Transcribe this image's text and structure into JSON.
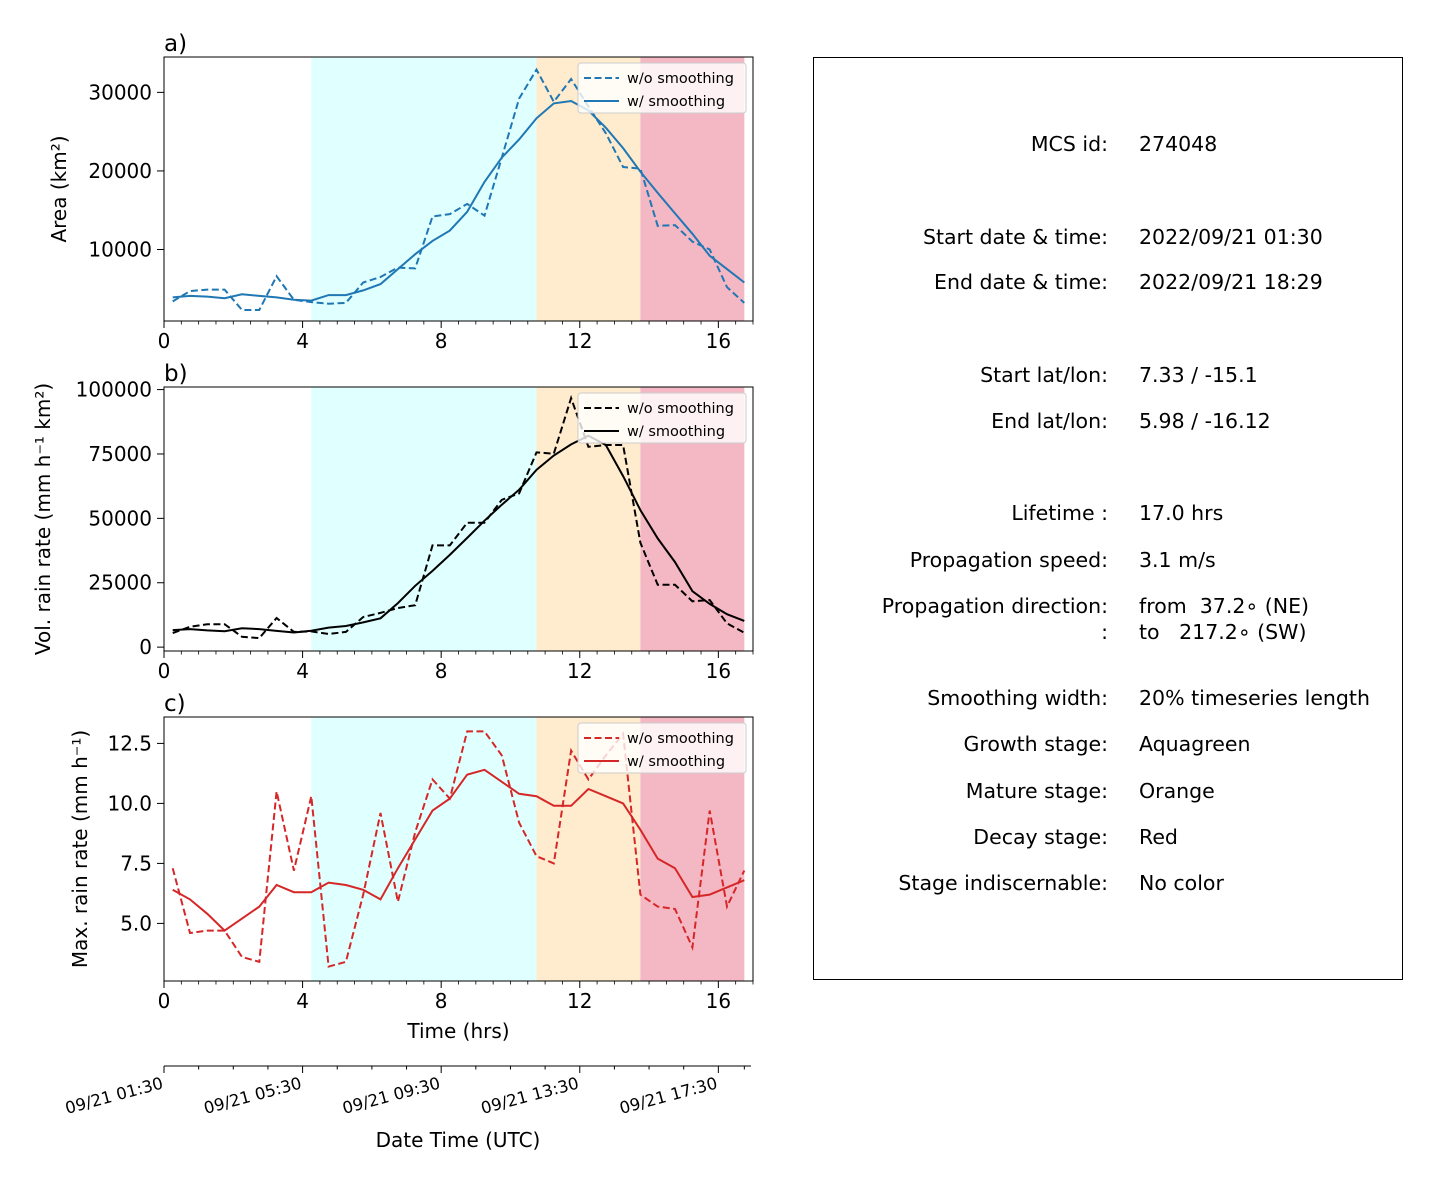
{
  "chart_data": [
    {
      "panel": "a)",
      "type": "line",
      "ylabel": "Area  (km²)",
      "xlabel": "",
      "xlim": [
        0,
        17
      ],
      "ylim": [
        900,
        34500
      ],
      "xticks": [
        "0",
        "4",
        "8",
        "12",
        "16"
      ],
      "yticks": [
        10000,
        20000,
        30000
      ],
      "ytick_labels": [
        "10000",
        "20000",
        "30000"
      ],
      "color": "#1f77b4",
      "legend": [
        "w/o smoothing",
        "w/ smoothing"
      ],
      "x": [
        0.25,
        0.75,
        1.25,
        1.75,
        2.25,
        2.75,
        3.25,
        3.75,
        4.25,
        4.75,
        5.25,
        5.75,
        6.25,
        6.75,
        7.25,
        7.75,
        8.25,
        8.75,
        9.25,
        9.75,
        10.25,
        10.75,
        11.25,
        11.75,
        12.25,
        12.75,
        13.25,
        13.75,
        14.25,
        14.75,
        15.25,
        15.75,
        16.25,
        16.75
      ],
      "series": [
        {
          "name": "w/o smoothing",
          "style": "dashed",
          "values": [
            3400,
            4700,
            4900,
            4900,
            2300,
            2300,
            6600,
            3600,
            3300,
            3100,
            3200,
            5800,
            6500,
            7700,
            7600,
            14200,
            14500,
            15800,
            14300,
            21700,
            29200,
            32900,
            28800,
            31700,
            28200,
            24800,
            20500,
            20300,
            13000,
            13100,
            11000,
            10000,
            5200,
            3200
          ]
        },
        {
          "name": "w/ smoothing",
          "style": "solid",
          "values": [
            3900,
            4100,
            4000,
            3800,
            4300,
            4100,
            3900,
            3600,
            3500,
            4200,
            4200,
            4800,
            5600,
            7500,
            9400,
            11100,
            12400,
            14800,
            18600,
            21700,
            24000,
            26700,
            28600,
            28900,
            27700,
            25500,
            22900,
            19900,
            17200,
            14600,
            12000,
            9200,
            7500,
            5800
          ]
        }
      ]
    },
    {
      "panel": "b)",
      "type": "line",
      "ylabel": "Vol. rain rate (mm h⁻¹ km²)",
      "xlabel": "",
      "xlim": [
        0,
        17
      ],
      "ylim": [
        -1500,
        101000
      ],
      "xticks": [
        "0",
        "4",
        "8",
        "12",
        "16"
      ],
      "yticks": [
        0,
        25000,
        50000,
        75000,
        100000
      ],
      "ytick_labels": [
        "0",
        "25000",
        "50000",
        "75000",
        "100000"
      ],
      "color": "#000000",
      "legend": [
        "w/o smoothing",
        "w/ smoothing"
      ],
      "x": [
        0.25,
        0.75,
        1.25,
        1.75,
        2.25,
        2.75,
        3.25,
        3.75,
        4.25,
        4.75,
        5.25,
        5.75,
        6.25,
        6.75,
        7.25,
        7.75,
        8.25,
        8.75,
        9.25,
        9.75,
        10.25,
        10.75,
        11.25,
        11.75,
        12.25,
        12.75,
        13.25,
        13.75,
        14.25,
        14.75,
        15.25,
        15.75,
        16.25,
        16.75
      ],
      "series": [
        {
          "name": "w/o smoothing",
          "style": "dashed",
          "values": [
            5500,
            7900,
            8900,
            8900,
            4000,
            3500,
            11300,
            5900,
            6100,
            5100,
            5900,
            11700,
            13300,
            15200,
            16300,
            39500,
            39500,
            48300,
            48300,
            57200,
            59700,
            75600,
            75100,
            96700,
            77800,
            78500,
            78500,
            40500,
            24200,
            24200,
            17800,
            18300,
            9200,
            5600
          ]
        },
        {
          "name": "w/ smoothing",
          "style": "solid",
          "values": [
            6600,
            7000,
            6500,
            6200,
            7300,
            7000,
            6300,
            5700,
            6400,
            7600,
            8200,
            9600,
            11200,
            17100,
            23800,
            29600,
            35800,
            42400,
            49100,
            55300,
            61100,
            68800,
            74400,
            78700,
            82100,
            78500,
            66400,
            53200,
            42200,
            33000,
            21700,
            16800,
            12800,
            10200
          ]
        }
      ]
    },
    {
      "panel": "c)",
      "type": "line",
      "ylabel": "Max. rain rate  (mm h⁻¹)",
      "xlabel": "Time (hrs)",
      "xlim": [
        0,
        17
      ],
      "ylim": [
        2.6,
        13.6
      ],
      "xticks": [
        "0",
        "4",
        "8",
        "12",
        "16"
      ],
      "yticks": [
        5.0,
        7.5,
        10.0,
        12.5
      ],
      "ytick_labels": [
        "5.0",
        "7.5",
        "10.0",
        "12.5"
      ],
      "color": "#d62728",
      "legend": [
        "w/o smoothing",
        "w/ smoothing"
      ],
      "x": [
        0.25,
        0.75,
        1.25,
        1.75,
        2.25,
        2.75,
        3.25,
        3.75,
        4.25,
        4.75,
        5.25,
        5.75,
        6.25,
        6.75,
        7.25,
        7.75,
        8.25,
        8.75,
        9.25,
        9.75,
        10.25,
        10.75,
        11.25,
        11.75,
        12.25,
        12.75,
        13.25,
        13.75,
        14.25,
        14.75,
        15.25,
        15.75,
        16.25,
        16.75
      ],
      "series": [
        {
          "name": "w/o smoothing",
          "style": "dashed",
          "values": [
            7.3,
            4.6,
            4.7,
            4.7,
            3.6,
            3.4,
            10.5,
            7.2,
            10.3,
            3.2,
            3.4,
            6.2,
            9.6,
            5.9,
            8.8,
            11.0,
            10.2,
            13.0,
            13.0,
            12.0,
            9.2,
            7.8,
            7.5,
            12.2,
            11.0,
            12.0,
            12.9,
            6.2,
            5.7,
            5.6,
            4.0,
            9.7,
            5.7,
            7.2
          ]
        },
        {
          "name": "w/ smoothing",
          "style": "solid",
          "values": [
            6.4,
            6.0,
            5.4,
            4.7,
            5.2,
            5.7,
            6.6,
            6.3,
            6.3,
            6.7,
            6.6,
            6.4,
            6.0,
            7.3,
            8.5,
            9.7,
            10.2,
            11.2,
            11.4,
            10.9,
            10.4,
            10.3,
            9.9,
            9.9,
            10.6,
            10.3,
            10.0,
            8.9,
            7.7,
            7.3,
            6.1,
            6.2,
            6.5,
            6.8
          ]
        }
      ]
    }
  ],
  "stages": [
    {
      "name": "Aquagreen",
      "start": 4.25,
      "end": 10.75,
      "color": "#e0ffff"
    },
    {
      "name": "Orange",
      "start": 10.75,
      "end": 13.75,
      "color": "#ffebcd"
    },
    {
      "name": "Red",
      "start": 13.75,
      "end": 16.75,
      "color": "#f4b8c4"
    }
  ],
  "datetime_axis": {
    "label": "Date Time (UTC)",
    "ticks": [
      {
        "hours": 0,
        "label": "09/21 01:30"
      },
      {
        "hours": 4,
        "label": "09/21 05:30"
      },
      {
        "hours": 8,
        "label": "09/21 09:30"
      },
      {
        "hours": 12,
        "label": "09/21 13:30"
      },
      {
        "hours": 16,
        "label": "09/21 17:30"
      }
    ]
  },
  "info": [
    {
      "label": "MCS id:",
      "value": "274048"
    },
    {
      "label": "Start date & time:",
      "value": "2022/09/21 01:30"
    },
    {
      "label": "End date & time:",
      "value": "2022/09/21 18:29"
    },
    {
      "label": "Start lat/lon:",
      "value": "7.33 / -15.1"
    },
    {
      "label": "End lat/lon:",
      "value": "5.98 / -16.12"
    },
    {
      "label": "Lifetime :",
      "value": "17.0 hrs"
    },
    {
      "label": "Propagation speed:",
      "value": "3.1 m/s"
    },
    {
      "label": "Propagation direction:",
      "value": "from  37.2∘ (NE)"
    },
    {
      "label": ":",
      "value": "to   217.2∘ (SW)"
    },
    {
      "label": "Smoothing width:",
      "value": "20% timeseries length"
    },
    {
      "label": "Growth stage:",
      "value": "Aquagreen"
    },
    {
      "label": "Mature stage:",
      "value": "Orange"
    },
    {
      "label": "Decay stage:",
      "value": "Red"
    },
    {
      "label": "Stage indiscernable:",
      "value": "No color"
    }
  ]
}
